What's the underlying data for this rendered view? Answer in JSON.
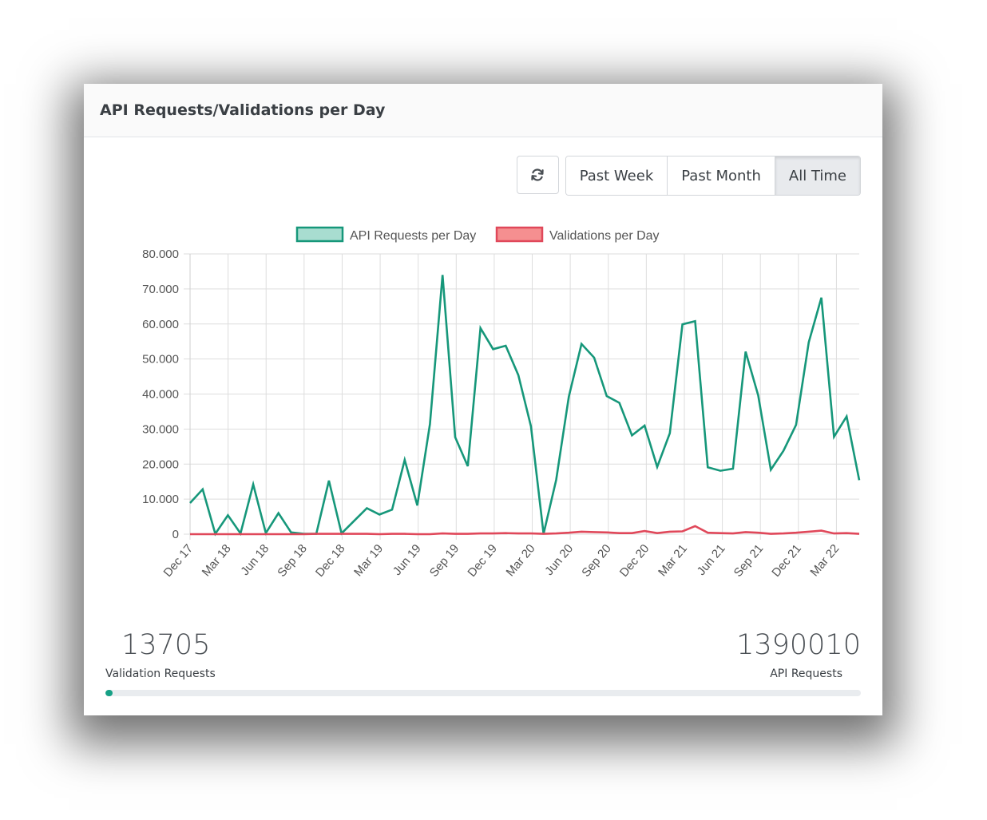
{
  "card": {
    "title": "API Requests/Validations per Day"
  },
  "toolbar": {
    "refresh_icon": "refresh-icon",
    "ranges": [
      {
        "label": "Past Week",
        "active": false
      },
      {
        "label": "Past Month",
        "active": false
      },
      {
        "label": "All Time",
        "active": true
      }
    ]
  },
  "stats": {
    "validations": {
      "value": "13705",
      "label": "Validation Requests"
    },
    "api": {
      "value": "1390010",
      "label": "API Requests"
    },
    "progress_fraction": 0.00986
  },
  "colors": {
    "api_line": "#16977a",
    "api_fill": "#a8ddd0",
    "val_line": "#e0485a",
    "val_fill": "#f58f90",
    "grid": "#dddddd"
  },
  "chart_data": {
    "type": "line",
    "legend_placement": "top",
    "grid": true,
    "ylim": [
      0,
      80000
    ],
    "y_ticks": [
      "0",
      "10.000",
      "20.000",
      "30.000",
      "40.000",
      "50.000",
      "60.000",
      "70.000",
      "80.000"
    ],
    "x_tick_labels": [
      "Dec 17",
      "Mar 18",
      "Jun 18",
      "Sep 18",
      "Dec 18",
      "Mar 19",
      "Jun 19",
      "Sep 19",
      "Dec 19",
      "Mar 20",
      "Jun 20",
      "Sep 20",
      "Dec 20",
      "Mar 21",
      "Jun 21",
      "Sep 21",
      "Dec 21",
      "Mar 22"
    ],
    "series": [
      {
        "name": "API Requests per Day",
        "values": [
          8900,
          12800,
          100,
          5400,
          200,
          14200,
          300,
          6000,
          500,
          100,
          100,
          15300,
          200,
          3800,
          7400,
          5600,
          7000,
          21200,
          8200,
          31400,
          74000,
          27700,
          19400,
          58800,
          52800,
          53800,
          45400,
          30800,
          100,
          15500,
          39200,
          54300,
          50400,
          39400,
          37500,
          28200,
          31000,
          19200,
          28800,
          59900,
          60800,
          19100,
          18100,
          18700,
          52100,
          39600,
          18400,
          23800,
          31200,
          54800,
          67500,
          27800,
          33600,
          15400
        ]
      },
      {
        "name": "Validations per Day",
        "values": [
          0,
          0,
          0,
          0,
          0,
          0,
          0,
          0,
          0,
          0,
          100,
          100,
          100,
          100,
          100,
          0,
          100,
          100,
          0,
          0,
          200,
          100,
          100,
          200,
          200,
          300,
          200,
          200,
          100,
          200,
          400,
          700,
          600,
          500,
          300,
          300,
          900,
          300,
          700,
          800,
          2300,
          400,
          300,
          200,
          600,
          400,
          100,
          200,
          400,
          700,
          1000,
          200,
          300,
          100
        ]
      }
    ]
  }
}
